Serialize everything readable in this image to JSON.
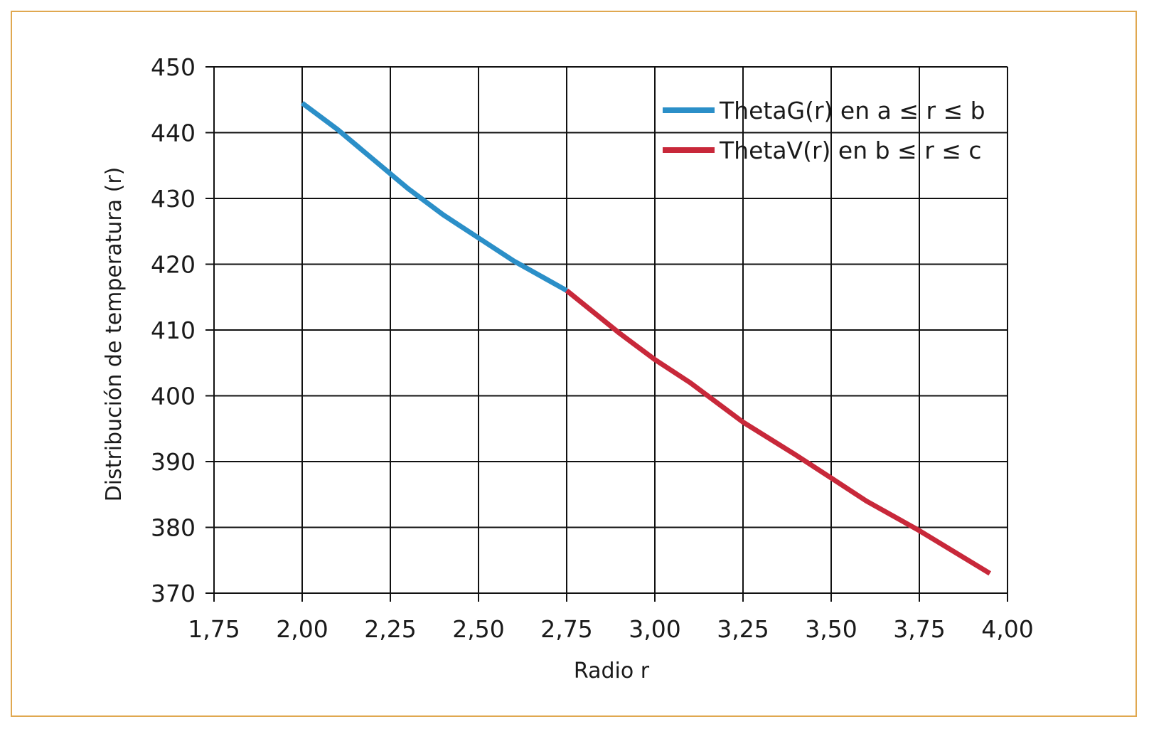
{
  "chart_data": {
    "type": "line",
    "xlabel": "Radio r",
    "ylabel": "Distribución de temperatura (r)",
    "xlim": [
      1.75,
      4.0
    ],
    "ylim": [
      370,
      450
    ],
    "x_ticks": [
      "1,75",
      "2,00",
      "2,25",
      "2,50",
      "2,75",
      "3,00",
      "3,25",
      "3,50",
      "3,75",
      "4,00"
    ],
    "y_ticks": [
      "370",
      "380",
      "390",
      "400",
      "410",
      "420",
      "430",
      "440",
      "450"
    ],
    "grid": true,
    "legend_position": "top-right",
    "series": [
      {
        "name": "ThetaG(r) en a ≤ r ≤ b",
        "color": "#2b8fc8",
        "x": [
          2.0,
          2.1,
          2.2,
          2.3,
          2.4,
          2.5,
          2.6,
          2.75
        ],
        "y": [
          444.5,
          440.5,
          436.0,
          431.5,
          427.5,
          424.0,
          420.5,
          416.0
        ]
      },
      {
        "name": "ThetaV(r) en b ≤ r ≤ c",
        "color": "#c8283a",
        "x": [
          2.75,
          2.9,
          3.0,
          3.1,
          3.25,
          3.4,
          3.5,
          3.6,
          3.75,
          3.95
        ],
        "y": [
          416.0,
          409.5,
          405.5,
          402.0,
          396.0,
          391.0,
          387.5,
          384.0,
          379.5,
          373.0
        ]
      }
    ]
  }
}
